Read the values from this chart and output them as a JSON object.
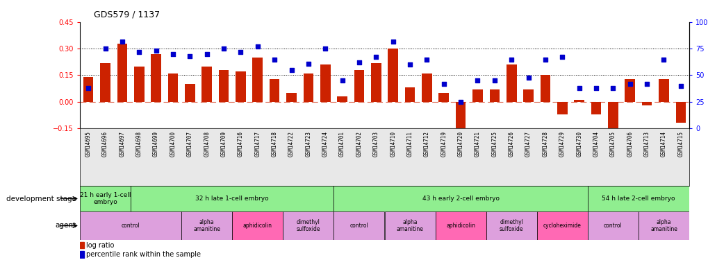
{
  "title": "GDS579 / 1137",
  "samples": [
    "GSM14695",
    "GSM14696",
    "GSM14697",
    "GSM14698",
    "GSM14699",
    "GSM14700",
    "GSM14707",
    "GSM14708",
    "GSM14709",
    "GSM14716",
    "GSM14717",
    "GSM14718",
    "GSM14722",
    "GSM14723",
    "GSM14724",
    "GSM14701",
    "GSM14702",
    "GSM14703",
    "GSM14710",
    "GSM14711",
    "GSM14712",
    "GSM14719",
    "GSM14720",
    "GSM14721",
    "GSM14725",
    "GSM14726",
    "GSM14727",
    "GSM14728",
    "GSM14729",
    "GSM14730",
    "GSM14704",
    "GSM14705",
    "GSM14706",
    "GSM14713",
    "GSM14714",
    "GSM14715"
  ],
  "log_ratio": [
    0.14,
    0.22,
    0.33,
    0.2,
    0.27,
    0.16,
    0.1,
    0.2,
    0.18,
    0.17,
    0.25,
    0.13,
    0.05,
    0.16,
    0.21,
    0.03,
    0.18,
    0.22,
    0.3,
    0.08,
    0.16,
    0.05,
    -0.18,
    0.07,
    0.07,
    0.21,
    0.07,
    0.15,
    -0.07,
    0.01,
    -0.07,
    -0.17,
    0.13,
    -0.02,
    0.13,
    -0.12
  ],
  "percentile": [
    38,
    75,
    82,
    72,
    73,
    70,
    68,
    70,
    75,
    72,
    77,
    65,
    55,
    61,
    75,
    45,
    62,
    67,
    82,
    60,
    65,
    42,
    25,
    45,
    45,
    65,
    48,
    65,
    67,
    38,
    38,
    38,
    42,
    42,
    65,
    40
  ],
  "dev_stage_groups": [
    {
      "label": "21 h early 1-cell\nembryo",
      "start": 0,
      "end": 3,
      "color": "#90EE90"
    },
    {
      "label": "32 h late 1-cell embryo",
      "start": 3,
      "end": 15,
      "color": "#90EE90"
    },
    {
      "label": "43 h early 2-cell embryo",
      "start": 15,
      "end": 30,
      "color": "#90EE90"
    },
    {
      "label": "54 h late 2-cell embryo",
      "start": 30,
      "end": 36,
      "color": "#90EE90"
    }
  ],
  "agent_groups": [
    {
      "label": "control",
      "start": 0,
      "end": 6,
      "color": "#DDA0DD"
    },
    {
      "label": "alpha\namanitine",
      "start": 6,
      "end": 9,
      "color": "#DDA0DD"
    },
    {
      "label": "aphidicolin",
      "start": 9,
      "end": 12,
      "color": "#FF69B4"
    },
    {
      "label": "dimethyl\nsulfoxide",
      "start": 12,
      "end": 15,
      "color": "#DDA0DD"
    },
    {
      "label": "control",
      "start": 15,
      "end": 18,
      "color": "#DDA0DD"
    },
    {
      "label": "alpha\namanitine",
      "start": 18,
      "end": 21,
      "color": "#DDA0DD"
    },
    {
      "label": "aphidicolin",
      "start": 21,
      "end": 24,
      "color": "#FF69B4"
    },
    {
      "label": "dimethyl\nsulfoxide",
      "start": 24,
      "end": 27,
      "color": "#DDA0DD"
    },
    {
      "label": "cycloheximide",
      "start": 27,
      "end": 30,
      "color": "#FF69B4"
    },
    {
      "label": "control",
      "start": 30,
      "end": 33,
      "color": "#DDA0DD"
    },
    {
      "label": "alpha\namanitine",
      "start": 33,
      "end": 36,
      "color": "#DDA0DD"
    }
  ],
  "ylim_left": [
    -0.15,
    0.45
  ],
  "ylim_right": [
    0,
    100
  ],
  "yticks_left": [
    -0.15,
    0,
    0.15,
    0.3,
    0.45
  ],
  "yticks_right": [
    0,
    25,
    50,
    75,
    100
  ],
  "hlines": [
    0.15,
    0.3
  ],
  "bar_color": "#CC2200",
  "scatter_color": "#0000CC",
  "bar_width": 0.6,
  "bg_color": "#E8E8E8",
  "fig_width": 10.2,
  "fig_height": 3.75,
  "dpi": 100
}
